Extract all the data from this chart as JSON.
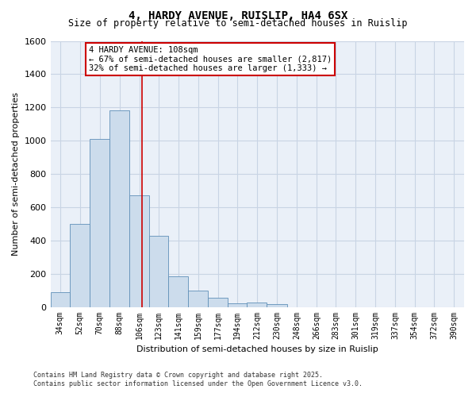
{
  "title1": "4, HARDY AVENUE, RUISLIP, HA4 6SX",
  "title2": "Size of property relative to semi-detached houses in Ruislip",
  "xlabel": "Distribution of semi-detached houses by size in Ruislip",
  "ylabel": "Number of semi-detached properties",
  "bin_labels": [
    "34sqm",
    "52sqm",
    "70sqm",
    "88sqm",
    "106sqm",
    "123sqm",
    "141sqm",
    "159sqm",
    "177sqm",
    "194sqm",
    "212sqm",
    "230sqm",
    "248sqm",
    "266sqm",
    "283sqm",
    "301sqm",
    "319sqm",
    "337sqm",
    "354sqm",
    "372sqm",
    "390sqm"
  ],
  "bin_edges": [
    25.5,
    43,
    61,
    79,
    97,
    114.5,
    132,
    150,
    168,
    185.5,
    203,
    221,
    239,
    257,
    274.5,
    292,
    310,
    328,
    345.5,
    363,
    381,
    399
  ],
  "bar_heights": [
    90,
    500,
    1010,
    1180,
    670,
    430,
    185,
    100,
    55,
    20,
    25,
    15,
    0,
    0,
    0,
    0,
    0,
    0,
    0,
    0,
    0
  ],
  "bar_color": "#ccdcec",
  "bar_edgecolor": "#6090b8",
  "property_value": 108,
  "annotation_text_line1": "4 HARDY AVENUE: 108sqm",
  "annotation_text_line2": "← 67% of semi-detached houses are smaller (2,817)",
  "annotation_text_line3": "32% of semi-detached houses are larger (1,333) →",
  "vline_color": "#cc0000",
  "ylim": [
    0,
    1600
  ],
  "yticks": [
    0,
    200,
    400,
    600,
    800,
    1000,
    1200,
    1400,
    1600
  ],
  "grid_color": "#c8d4e4",
  "background_color": "#eaf0f8",
  "fig_background": "#ffffff",
  "annotation_box_facecolor": "#ffffff",
  "annotation_box_edgecolor": "#cc0000",
  "footnote1": "Contains HM Land Registry data © Crown copyright and database right 2025.",
  "footnote2": "Contains public sector information licensed under the Open Government Licence v3.0."
}
